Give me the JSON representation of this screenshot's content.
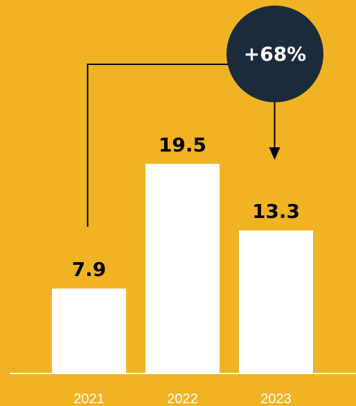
{
  "chart_data": {
    "type": "bar",
    "categories": [
      "2021",
      "2022",
      "2023"
    ],
    "values": [
      7.9,
      19.5,
      13.3
    ],
    "value_labels": [
      "7.9",
      "19.5",
      "13.3"
    ],
    "title": "",
    "xlabel": "",
    "ylabel": "",
    "ylim": [
      0,
      22
    ],
    "grid": false,
    "legend": "none",
    "annotation": {
      "text": "+68%",
      "from_category": "2021",
      "to_category": "2023"
    }
  },
  "colors": {
    "background": "#F0B323",
    "bar": "#FFFFFF",
    "badge": "#1C2B3C",
    "connector": "#000000",
    "baseline": "#FFFFFF"
  }
}
